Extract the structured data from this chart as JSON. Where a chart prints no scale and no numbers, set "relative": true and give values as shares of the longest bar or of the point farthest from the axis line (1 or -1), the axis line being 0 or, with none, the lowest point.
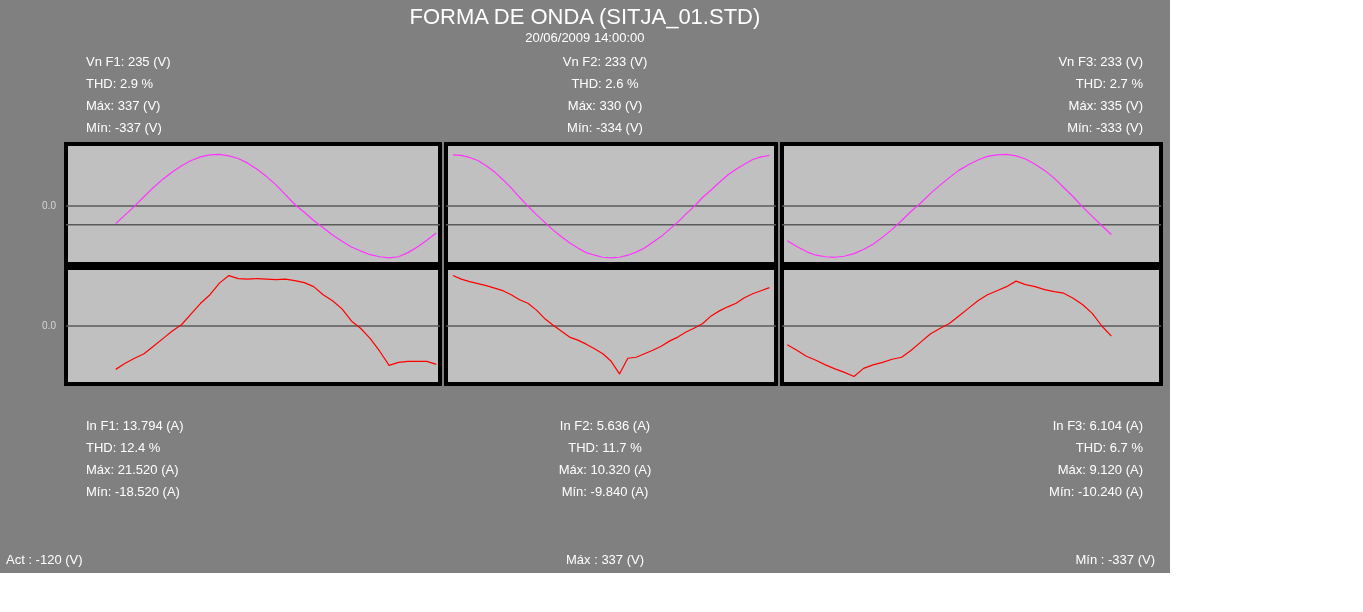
{
  "chart_data": [
    {
      "type": "line",
      "relative": true,
      "categories": [
        null,
        null,
        null,
        null,
        null,
        null,
        null,
        null,
        null,
        null,
        null,
        null,
        null,
        null,
        null,
        null,
        null,
        null,
        null,
        null,
        null,
        null,
        null,
        null,
        null,
        null,
        null,
        null,
        null,
        null,
        null,
        null,
        null,
        null,
        null
      ],
      "series": [
        {
          "color": "#ff33ff",
          "values": [
            -0.34,
            -0.17,
            0.0,
            0.18,
            0.36,
            0.52,
            0.66,
            0.78,
            0.88,
            0.95,
            0.99,
            1.0,
            0.97,
            0.92,
            0.83,
            0.71,
            0.57,
            0.41,
            0.22,
            0.03,
            -0.12,
            -0.28,
            -0.42,
            -0.56,
            -0.68,
            -0.79,
            -0.87,
            -0.94,
            -0.98,
            -1.0,
            -0.98,
            -0.9,
            -0.79,
            -0.66,
            -0.52
          ]
        }
      ],
      "ref_lines": [
        {
          "axis": "y",
          "value": -0.36,
          "color": "#5a5a5a"
        }
      ],
      "annotations": [
        "Vn F1: 235 (V)",
        "THD: 2.9 %",
        "Máx: 337 (V)",
        "Mín: -337 (V)",
        "0.0"
      ]
    },
    {
      "type": "line",
      "title": "FORMA DE ONDA (SITJA_01.STD)",
      "subtitle": "20/06/2009 14:00:00",
      "relative": true,
      "categories": [
        null,
        null,
        null,
        null,
        null,
        null,
        null,
        null,
        null,
        null,
        null,
        null,
        null,
        null,
        null,
        null,
        null,
        null,
        null,
        null,
        null,
        null,
        null,
        null,
        null,
        null,
        null,
        null,
        null,
        null,
        null,
        null,
        null,
        null,
        null,
        null,
        null,
        null,
        null
      ],
      "series": [
        {
          "color": "#ff33ff",
          "values": [
            0.99,
            0.98,
            0.94,
            0.88,
            0.78,
            0.66,
            0.51,
            0.35,
            0.17,
            0.0,
            -0.16,
            -0.31,
            -0.46,
            -0.59,
            -0.71,
            -0.81,
            -0.9,
            -0.95,
            -0.99,
            -1.0,
            -0.99,
            -0.95,
            -0.89,
            -0.81,
            -0.7,
            -0.59,
            -0.45,
            -0.31,
            -0.15,
            0.0,
            0.17,
            0.31,
            0.46,
            0.6,
            0.71,
            0.81,
            0.9,
            0.95,
            0.98
          ]
        }
      ],
      "ref_lines": [
        {
          "axis": "y",
          "value": -0.36,
          "color": "#5a5a5a"
        }
      ],
      "annotations": [
        "Vn F2: 233 (V)",
        "THD: 2.6 %",
        "Máx: 330 (V)",
        "Mín: -334 (V)"
      ]
    },
    {
      "type": "line",
      "relative": true,
      "categories": [
        null,
        null,
        null,
        null,
        null,
        null,
        null,
        null,
        null,
        null,
        null,
        null,
        null,
        null,
        null,
        null,
        null,
        null,
        null,
        null,
        null,
        null,
        null,
        null,
        null,
        null,
        null,
        null,
        null,
        null,
        null,
        null,
        null,
        null,
        null
      ],
      "series": [
        {
          "color": "#ff33ff",
          "values": [
            -0.67,
            -0.78,
            -0.88,
            -0.95,
            -0.98,
            -0.99,
            -0.97,
            -0.92,
            -0.84,
            -0.74,
            -0.6,
            -0.45,
            -0.28,
            -0.1,
            0.06,
            0.24,
            0.4,
            0.55,
            0.69,
            0.8,
            0.89,
            0.96,
            0.99,
            1.0,
            0.97,
            0.91,
            0.81,
            0.69,
            0.54,
            0.36,
            0.18,
            -0.02,
            -0.2,
            -0.38,
            -0.55
          ]
        }
      ],
      "ref_lines": [
        {
          "axis": "y",
          "value": -0.36,
          "color": "#5a5a5a"
        }
      ],
      "annotations": [
        "Vn F3: 233 (V)",
        "THD: 2.7 %",
        "Máx: 335 (V)",
        "Mín: -333 (V)"
      ]
    },
    {
      "type": "line",
      "relative": true,
      "categories": [
        null,
        null,
        null,
        null,
        null,
        null,
        null,
        null,
        null,
        null,
        null,
        null,
        null,
        null,
        null,
        null,
        null,
        null,
        null,
        null,
        null,
        null,
        null,
        null,
        null,
        null,
        null,
        null,
        null,
        null,
        null,
        null,
        null,
        null,
        null
      ],
      "series": [
        {
          "color": "#ff0000",
          "values": [
            -0.86,
            -0.74,
            -0.64,
            -0.55,
            -0.4,
            -0.25,
            -0.1,
            0.03,
            0.24,
            0.45,
            0.62,
            0.85,
            1.0,
            0.94,
            0.93,
            0.94,
            0.93,
            0.92,
            0.93,
            0.9,
            0.86,
            0.78,
            0.62,
            0.5,
            0.34,
            0.1,
            -0.05,
            -0.25,
            -0.5,
            -0.78,
            -0.72,
            -0.7,
            -0.7,
            -0.7,
            -0.76
          ]
        }
      ],
      "annotations": [
        "In F1: 13.794 (A)",
        "THD: 12.4 %",
        "Máx: 21.520 (A)",
        "Mín: -18.520 (A)",
        "Act : -120 (V)",
        "0.0"
      ]
    },
    {
      "type": "line",
      "relative": true,
      "categories": [
        null,
        null,
        null,
        null,
        null,
        null,
        null,
        null,
        null,
        null,
        null,
        null,
        null,
        null,
        null,
        null,
        null,
        null,
        null,
        null,
        null,
        null,
        null,
        null,
        null,
        null,
        null,
        null,
        null,
        null,
        null,
        null,
        null,
        null,
        null,
        null,
        null,
        null,
        null
      ],
      "series": [
        {
          "color": "#ff0000",
          "values": [
            1.0,
            0.93,
            0.88,
            0.84,
            0.8,
            0.75,
            0.7,
            0.62,
            0.52,
            0.45,
            0.32,
            0.15,
            0.02,
            -0.1,
            -0.22,
            -0.28,
            -0.36,
            -0.45,
            -0.55,
            -0.7,
            -0.95,
            -0.64,
            -0.62,
            -0.55,
            -0.48,
            -0.4,
            -0.3,
            -0.22,
            -0.12,
            -0.04,
            0.05,
            0.2,
            0.3,
            0.38,
            0.45,
            0.56,
            0.64,
            0.7,
            0.76
          ]
        }
      ],
      "annotations": [
        "In F2: 5.636 (A)",
        "THD: 11.7 %",
        "Máx: 10.320 (A)",
        "Mín: -9.840 (A)",
        "Máx : 337 (V)"
      ]
    },
    {
      "type": "line",
      "relative": true,
      "categories": [
        null,
        null,
        null,
        null,
        null,
        null,
        null,
        null,
        null,
        null,
        null,
        null,
        null,
        null,
        null,
        null,
        null,
        null,
        null,
        null,
        null,
        null,
        null,
        null,
        null,
        null,
        null,
        null,
        null,
        null,
        null,
        null,
        null,
        null,
        null
      ],
      "series": [
        {
          "color": "#ff0000",
          "values": [
            -0.37,
            -0.48,
            -0.6,
            -0.68,
            -0.77,
            -0.85,
            -0.92,
            -1.0,
            -0.84,
            -0.77,
            -0.72,
            -0.66,
            -0.62,
            -0.48,
            -0.32,
            -0.16,
            -0.05,
            0.05,
            0.2,
            0.35,
            0.5,
            0.62,
            0.7,
            0.78,
            0.89,
            0.82,
            0.78,
            0.72,
            0.68,
            0.65,
            0.55,
            0.42,
            0.25,
            0.0,
            -0.2
          ]
        }
      ],
      "annotations": [
        "In F3: 6.104 (A)",
        "THD: 6.7 %",
        "Máx: 9.120 (A)",
        "Mín: -10.240 (A)",
        "Mín : -337 (V)"
      ]
    }
  ]
}
